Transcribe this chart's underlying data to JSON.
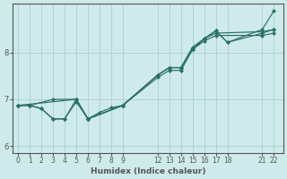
{
  "xlabel": "Humidex (Indice chaleur)",
  "ylabel": "",
  "bg_color": "#ceeaea",
  "line_color": "#2a7068",
  "grid_color": "#aacfcf",
  "axis_color": "#555555",
  "xlim": [
    -0.5,
    22.8
  ],
  "ylim": [
    5.85,
    9.05
  ],
  "xticks": [
    0,
    1,
    2,
    3,
    4,
    5,
    6,
    7,
    8,
    9,
    12,
    13,
    14,
    15,
    16,
    17,
    18,
    21,
    22
  ],
  "yticks": [
    6,
    7,
    8
  ],
  "lines": [
    {
      "x": [
        0,
        1,
        2,
        3,
        4,
        5,
        6,
        7,
        8,
        9,
        12,
        13,
        14,
        15,
        16,
        17,
        21,
        22
      ],
      "y": [
        6.87,
        6.87,
        6.8,
        6.58,
        6.58,
        7.0,
        6.58,
        6.72,
        6.82,
        6.87,
        7.47,
        7.62,
        7.62,
        8.07,
        8.25,
        8.37,
        8.37,
        8.42
      ]
    },
    {
      "x": [
        0,
        1,
        3,
        5,
        6,
        9,
        12,
        13,
        14,
        15,
        16,
        17,
        21,
        22
      ],
      "y": [
        6.87,
        6.87,
        7.0,
        7.0,
        6.58,
        6.87,
        7.52,
        7.68,
        7.68,
        8.07,
        8.3,
        8.42,
        8.45,
        8.5
      ]
    },
    {
      "x": [
        0,
        1,
        2,
        3,
        4,
        5,
        6,
        9,
        12,
        13,
        14,
        15,
        16,
        17,
        18,
        21,
        22
      ],
      "y": [
        6.87,
        6.87,
        6.8,
        6.58,
        6.58,
        6.95,
        6.58,
        6.87,
        7.52,
        7.68,
        7.68,
        8.07,
        8.3,
        8.47,
        8.22,
        8.42,
        8.5
      ]
    },
    {
      "x": [
        0,
        5,
        6,
        9,
        12,
        13,
        14,
        15,
        16,
        17,
        18,
        21,
        22
      ],
      "y": [
        6.87,
        7.0,
        6.58,
        6.87,
        7.52,
        7.68,
        7.68,
        8.12,
        8.3,
        8.47,
        8.22,
        8.5,
        8.9
      ]
    }
  ]
}
